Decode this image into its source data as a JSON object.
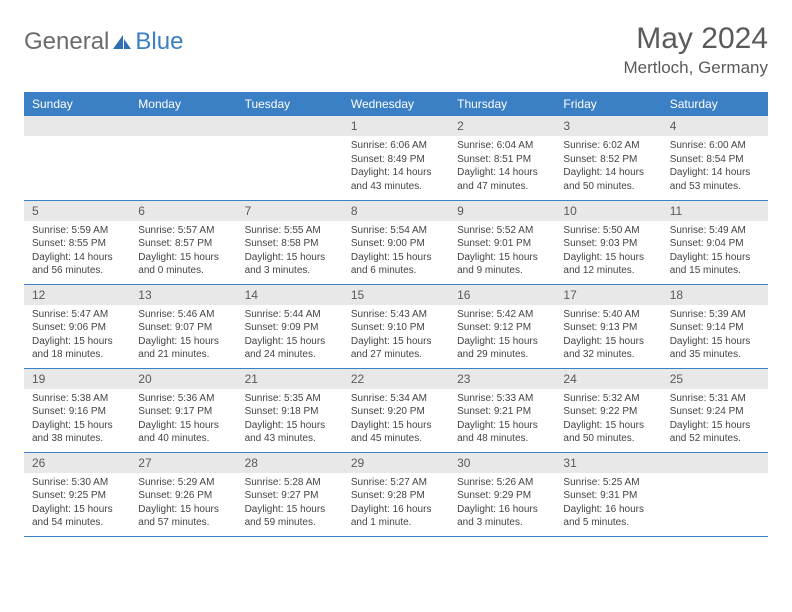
{
  "brand": {
    "name1": "General",
    "name2": "Blue"
  },
  "title": "May 2024",
  "location": "Mertloch, Germany",
  "colors": {
    "header_bg": "#3b7fc4",
    "header_text": "#ffffff",
    "daynum_bg": "#e8e8e8",
    "text": "#444444",
    "divider": "#3b7fc4",
    "brand_gray": "#6b6b6b",
    "brand_blue": "#3b7fc4"
  },
  "weekdays": [
    "Sunday",
    "Monday",
    "Tuesday",
    "Wednesday",
    "Thursday",
    "Friday",
    "Saturday"
  ],
  "weeks": [
    [
      null,
      null,
      null,
      {
        "n": "1",
        "sunrise": "6:06 AM",
        "sunset": "8:49 PM",
        "day_h": "14",
        "day_m": "43"
      },
      {
        "n": "2",
        "sunrise": "6:04 AM",
        "sunset": "8:51 PM",
        "day_h": "14",
        "day_m": "47"
      },
      {
        "n": "3",
        "sunrise": "6:02 AM",
        "sunset": "8:52 PM",
        "day_h": "14",
        "day_m": "50"
      },
      {
        "n": "4",
        "sunrise": "6:00 AM",
        "sunset": "8:54 PM",
        "day_h": "14",
        "day_m": "53"
      }
    ],
    [
      {
        "n": "5",
        "sunrise": "5:59 AM",
        "sunset": "8:55 PM",
        "day_h": "14",
        "day_m": "56"
      },
      {
        "n": "6",
        "sunrise": "5:57 AM",
        "sunset": "8:57 PM",
        "day_h": "15",
        "day_m": "0"
      },
      {
        "n": "7",
        "sunrise": "5:55 AM",
        "sunset": "8:58 PM",
        "day_h": "15",
        "day_m": "3"
      },
      {
        "n": "8",
        "sunrise": "5:54 AM",
        "sunset": "9:00 PM",
        "day_h": "15",
        "day_m": "6"
      },
      {
        "n": "9",
        "sunrise": "5:52 AM",
        "sunset": "9:01 PM",
        "day_h": "15",
        "day_m": "9"
      },
      {
        "n": "10",
        "sunrise": "5:50 AM",
        "sunset": "9:03 PM",
        "day_h": "15",
        "day_m": "12"
      },
      {
        "n": "11",
        "sunrise": "5:49 AM",
        "sunset": "9:04 PM",
        "day_h": "15",
        "day_m": "15"
      }
    ],
    [
      {
        "n": "12",
        "sunrise": "5:47 AM",
        "sunset": "9:06 PM",
        "day_h": "15",
        "day_m": "18"
      },
      {
        "n": "13",
        "sunrise": "5:46 AM",
        "sunset": "9:07 PM",
        "day_h": "15",
        "day_m": "21"
      },
      {
        "n": "14",
        "sunrise": "5:44 AM",
        "sunset": "9:09 PM",
        "day_h": "15",
        "day_m": "24"
      },
      {
        "n": "15",
        "sunrise": "5:43 AM",
        "sunset": "9:10 PM",
        "day_h": "15",
        "day_m": "27"
      },
      {
        "n": "16",
        "sunrise": "5:42 AM",
        "sunset": "9:12 PM",
        "day_h": "15",
        "day_m": "29"
      },
      {
        "n": "17",
        "sunrise": "5:40 AM",
        "sunset": "9:13 PM",
        "day_h": "15",
        "day_m": "32"
      },
      {
        "n": "18",
        "sunrise": "5:39 AM",
        "sunset": "9:14 PM",
        "day_h": "15",
        "day_m": "35"
      }
    ],
    [
      {
        "n": "19",
        "sunrise": "5:38 AM",
        "sunset": "9:16 PM",
        "day_h": "15",
        "day_m": "38"
      },
      {
        "n": "20",
        "sunrise": "5:36 AM",
        "sunset": "9:17 PM",
        "day_h": "15",
        "day_m": "40"
      },
      {
        "n": "21",
        "sunrise": "5:35 AM",
        "sunset": "9:18 PM",
        "day_h": "15",
        "day_m": "43"
      },
      {
        "n": "22",
        "sunrise": "5:34 AM",
        "sunset": "9:20 PM",
        "day_h": "15",
        "day_m": "45"
      },
      {
        "n": "23",
        "sunrise": "5:33 AM",
        "sunset": "9:21 PM",
        "day_h": "15",
        "day_m": "48"
      },
      {
        "n": "24",
        "sunrise": "5:32 AM",
        "sunset": "9:22 PM",
        "day_h": "15",
        "day_m": "50"
      },
      {
        "n": "25",
        "sunrise": "5:31 AM",
        "sunset": "9:24 PM",
        "day_h": "15",
        "day_m": "52"
      }
    ],
    [
      {
        "n": "26",
        "sunrise": "5:30 AM",
        "sunset": "9:25 PM",
        "day_h": "15",
        "day_m": "54"
      },
      {
        "n": "27",
        "sunrise": "5:29 AM",
        "sunset": "9:26 PM",
        "day_h": "15",
        "day_m": "57"
      },
      {
        "n": "28",
        "sunrise": "5:28 AM",
        "sunset": "9:27 PM",
        "day_h": "15",
        "day_m": "59"
      },
      {
        "n": "29",
        "sunrise": "5:27 AM",
        "sunset": "9:28 PM",
        "day_h": "16",
        "day_m": "1"
      },
      {
        "n": "30",
        "sunrise": "5:26 AM",
        "sunset": "9:29 PM",
        "day_h": "16",
        "day_m": "3"
      },
      {
        "n": "31",
        "sunrise": "5:25 AM",
        "sunset": "9:31 PM",
        "day_h": "16",
        "day_m": "5"
      },
      null
    ]
  ],
  "labels": {
    "sunrise": "Sunrise:",
    "sunset": "Sunset:",
    "daylight": "Daylight:",
    "hours": "hours",
    "and": "and",
    "minute": "minute",
    "minutes": "minutes"
  }
}
